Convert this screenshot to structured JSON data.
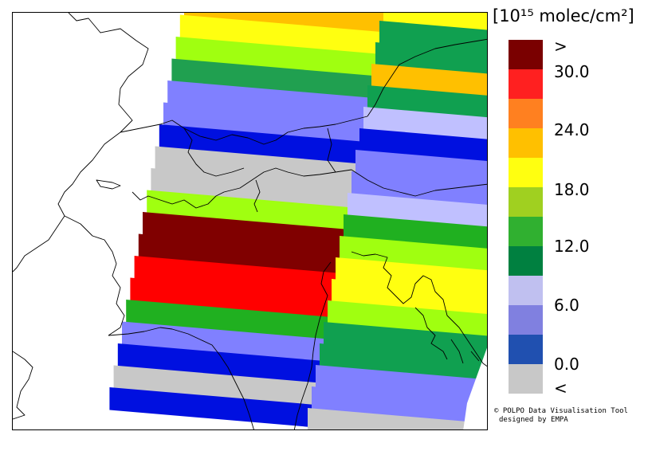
{
  "legend": {
    "title": "[10¹⁵ molec/cm²]",
    "colors": [
      "#7a0000",
      "#ff2020",
      "#ff8020",
      "#ffc000",
      "#ffff10",
      "#a0d020",
      "#30b030",
      "#008040",
      "#c0c0f0",
      "#8080e0",
      "#2050b0",
      "#c8c8c8"
    ],
    "labels": [
      ">",
      "30.0",
      "24.0",
      "18.0",
      "12.0",
      "6.0",
      "0.0",
      "<"
    ]
  },
  "credit": {
    "line1": "© POLPO Data Visualisation Tool",
    "line2": "designed by EMPA"
  },
  "map": {
    "region": "Northern Italy, Alps and Northern Adriatic",
    "left_swath_colors": [
      "#ffc000",
      "#ffff10",
      "#a0ff10",
      "#20a050",
      "#8080ff",
      "#8080ff",
      "#0010e0",
      "#c8c8c8",
      "#c8c8c8",
      "#a0ff10",
      "#800000",
      "#800000",
      "#ff0000",
      "#ff0000",
      "#20b020",
      "#8080ff",
      "#0010e0",
      "#c8c8c8",
      "#0010e0"
    ],
    "right_swath_colors": [
      "#ffff10",
      "#10a050",
      "#10a050",
      "#ffc000",
      "#10a050",
      "#c0c0ff",
      "#0010e0",
      "#8080ff",
      "#8080ff",
      "#c0c0ff",
      "#20b020",
      "#a0ff10",
      "#ffff10",
      "#ffff10",
      "#a0ff10",
      "#10a050",
      "#10a050",
      "#8080ff",
      "#8080ff",
      "#c8c8c8",
      "#0010e0"
    ]
  }
}
